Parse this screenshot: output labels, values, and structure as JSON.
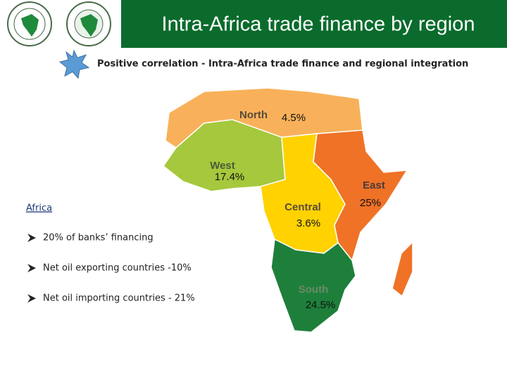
{
  "header": {
    "title": "Intra-Africa trade finance by region"
  },
  "subtitle": "Positive correlation - Intra-Africa trade finance and regional integration",
  "regions": [
    {
      "name": "North",
      "share": "4.5%"
    },
    {
      "name": "West",
      "share": "17.4%"
    },
    {
      "name": "Central",
      "share": "3.6%"
    },
    {
      "name": "East",
      "share": "25%"
    },
    {
      "name": "South",
      "share": "24.5%"
    }
  ],
  "sidebar": {
    "heading": "Africa",
    "bullets": [
      "20% of banks’ financing",
      "Net oil exporting countries -10%",
      "Net oil importing countries - 21%"
    ]
  }
}
